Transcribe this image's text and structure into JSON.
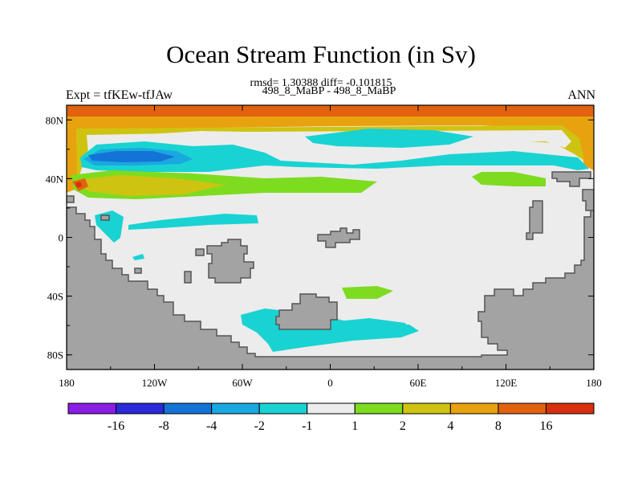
{
  "title": "Ocean Stream Function (in Sv)",
  "subtitle": "rmsd= 1.30388 diff= -0.101815",
  "left_label": "Expt = tfKEw-tfJAw",
  "center_label": "498_8_MaBP - 498_8_MaBP",
  "right_label": "ANN",
  "axes": {
    "x_ticks": [
      "180",
      "120W",
      "60W",
      "0",
      "60E",
      "120E",
      "180"
    ],
    "y_ticks": [
      "80N",
      "40N",
      "0",
      "40S",
      "80S"
    ]
  },
  "colorbar": {
    "labels": [
      "-16",
      "-8",
      "-4",
      "-2",
      "-1",
      "1",
      "2",
      "4",
      "8",
      "16"
    ],
    "colors": [
      "#8a1de6",
      "#2a2ad8",
      "#1473d6",
      "#1aa8e0",
      "#19d3d3",
      "#ececec",
      "#7ddc1f",
      "#cfc312",
      "#e8a20f",
      "#e2620f",
      "#d8300c"
    ]
  },
  "colors": {
    "land": "#a3a3a3",
    "land_outline": "#555555",
    "background_field": "#ececec"
  }
}
